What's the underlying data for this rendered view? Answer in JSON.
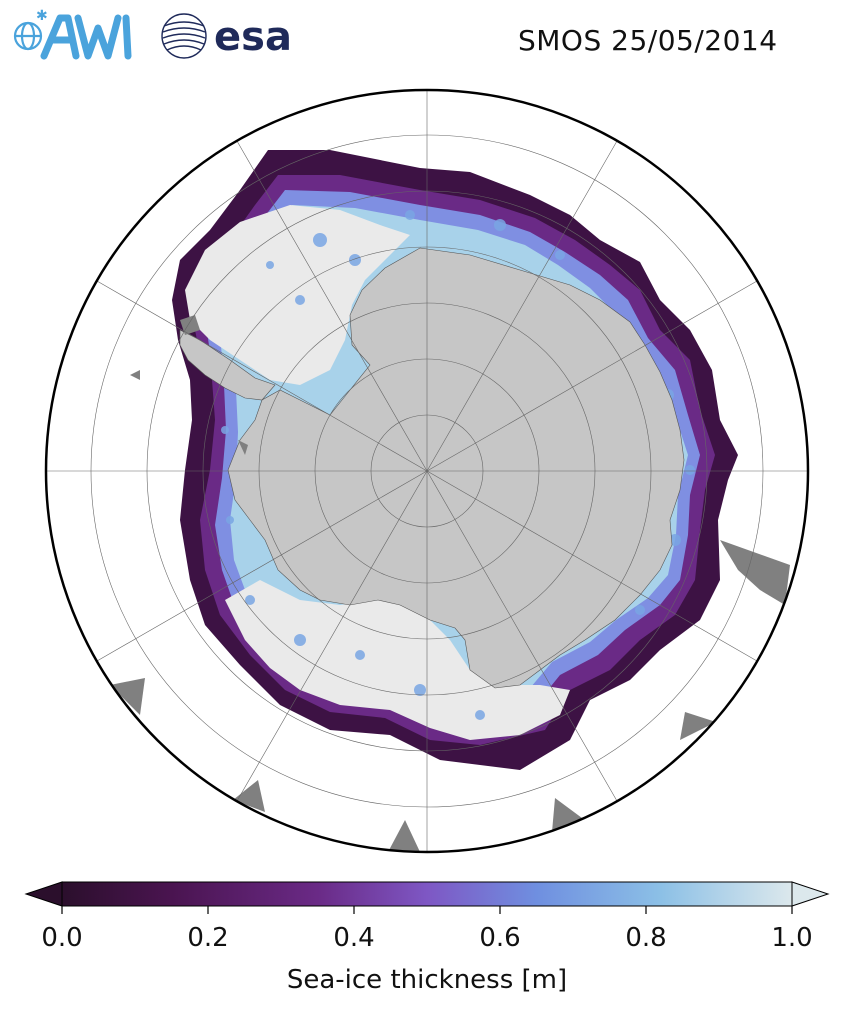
{
  "title": "SMOS 25/05/2014",
  "logos": {
    "awi": {
      "icon": "awi-logo",
      "text": "AWI"
    },
    "esa": {
      "icon": "esa-logo",
      "text": "esa"
    }
  },
  "map": {
    "projection": "south-polar-stereographic",
    "graticule": true,
    "colors": {
      "land": "#c8c8c8",
      "thick_ice": "#eaeaea",
      "no_data": "#808080",
      "ocean": "#ffffff"
    }
  },
  "colorbar": {
    "label": "Sea-ice thickness [m]",
    "min": 0.0,
    "max": 1.0,
    "extend": "both",
    "ticks": [
      "0.0",
      "0.2",
      "0.4",
      "0.6",
      "0.8",
      "1.0"
    ],
    "colors": [
      "#2b0f2c",
      "#4a1450",
      "#6a2a86",
      "#7e57c4",
      "#6f8fe0",
      "#8cc0e6",
      "#dce8ec"
    ]
  }
}
